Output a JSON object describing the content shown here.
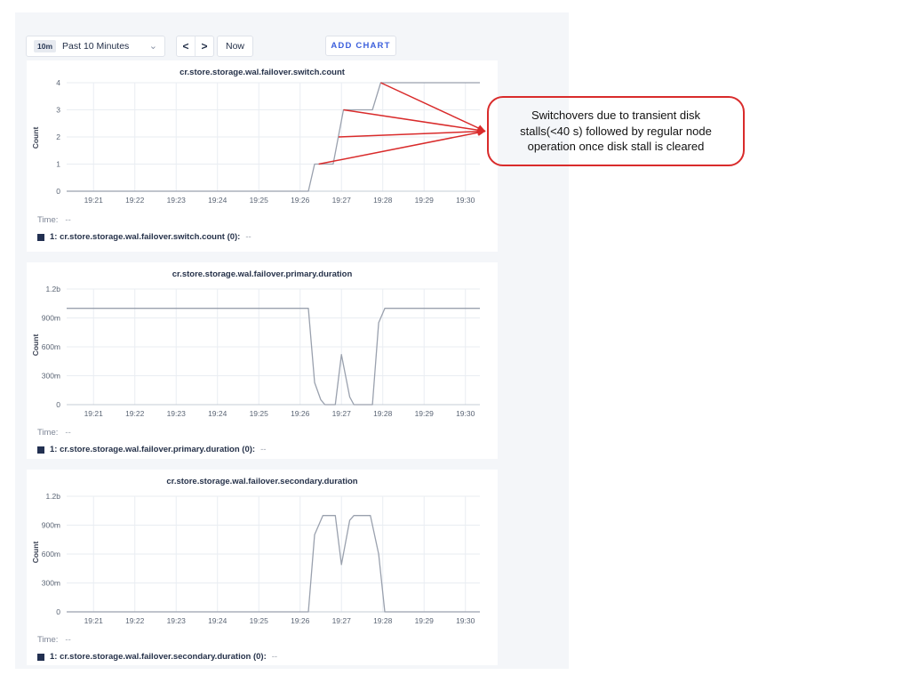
{
  "toolbar": {
    "time_range_badge": "10m",
    "time_range_label": "Past 10 Minutes",
    "chevron_down_icon": "⌄",
    "prev_icon": "<",
    "next_icon": ">",
    "now_label": "Now",
    "add_chart_label": "ADD CHART"
  },
  "annotation": {
    "lines": [
      "Switchovers due to transient disk",
      "stalls(<40 s) followed by regular node",
      "operation once disk stall is cleared"
    ],
    "color": "#d92b2b",
    "arrow_targets": [
      {
        "t": 27.95,
        "v": 4
      },
      {
        "t": 27.05,
        "v": 3
      },
      {
        "t": 26.93,
        "v": 2
      },
      {
        "t": 26.45,
        "v": 1
      }
    ]
  },
  "colors": {
    "line": "#9aa1ae",
    "grid": "#e9edf2",
    "baseline": "#c6ccd6",
    "tick_text": "#5b6575",
    "title_text": "#26324a",
    "swatch": "#223051",
    "accent_blue": "#3b5fdc",
    "content_bg": "#f4f6f9",
    "annotation_red": "#d92b2b"
  },
  "chart_data": [
    {
      "type": "line",
      "title": "cr.store.storage.wal.failover.switch.count",
      "ylabel": "Count",
      "x_unit": "time of day (hh:mm), minutes after 19:00",
      "xlim": [
        20.35,
        30.35
      ],
      "ylim": [
        0,
        4
      ],
      "xtick_values": [
        21,
        22,
        23,
        24,
        25,
        26,
        27,
        28,
        29,
        30
      ],
      "xtick_labels": [
        "19:21",
        "19:22",
        "19:23",
        "19:24",
        "19:25",
        "19:26",
        "19:27",
        "19:28",
        "19:29",
        "19:30"
      ],
      "ytick_values": [
        0,
        1,
        2,
        3,
        4
      ],
      "ytick_labels": [
        "0",
        "1",
        "2",
        "3",
        "4"
      ],
      "points": [
        [
          20.35,
          0
        ],
        [
          26.2,
          0
        ],
        [
          26.35,
          1
        ],
        [
          26.8,
          1
        ],
        [
          27.05,
          3
        ],
        [
          27.75,
          3
        ],
        [
          27.95,
          4
        ],
        [
          30.35,
          4
        ]
      ],
      "legend": {
        "time_label": "Time:",
        "time_value": "--",
        "series_label": "1: cr.store.storage.wal.failover.switch.count (0):",
        "series_value": "--"
      }
    },
    {
      "type": "line",
      "title": "cr.store.storage.wal.failover.primary.duration",
      "ylabel": "Count",
      "x_unit": "time of day (hh:mm), minutes after 19:00",
      "xlim": [
        20.35,
        30.35
      ],
      "ylim": [
        0,
        1.2
      ],
      "xtick_values": [
        21,
        22,
        23,
        24,
        25,
        26,
        27,
        28,
        29,
        30
      ],
      "xtick_labels": [
        "19:21",
        "19:22",
        "19:23",
        "19:24",
        "19:25",
        "19:26",
        "19:27",
        "19:28",
        "19:29",
        "19:30"
      ],
      "ytick_values": [
        0,
        0.3,
        0.6,
        0.9,
        1.2
      ],
      "ytick_labels": [
        "0",
        "300m",
        "600m",
        "900m",
        "1.2b"
      ],
      "points": [
        [
          20.35,
          1
        ],
        [
          26.2,
          1
        ],
        [
          26.35,
          0.23
        ],
        [
          26.5,
          0.05
        ],
        [
          26.6,
          0
        ],
        [
          26.85,
          0
        ],
        [
          27.0,
          0.52
        ],
        [
          27.2,
          0.08
        ],
        [
          27.3,
          0
        ],
        [
          27.75,
          0
        ],
        [
          27.9,
          0.85
        ],
        [
          28.05,
          1
        ],
        [
          30.35,
          1
        ]
      ],
      "legend": {
        "time_label": "Time:",
        "time_value": "--",
        "series_label": "1: cr.store.storage.wal.failover.primary.duration (0):",
        "series_value": "--"
      }
    },
    {
      "type": "line",
      "title": "cr.store.storage.wal.failover.secondary.duration",
      "ylabel": "Count",
      "x_unit": "time of day (hh:mm), minutes after 19:00",
      "xlim": [
        20.35,
        30.35
      ],
      "ylim": [
        0,
        1.2
      ],
      "xtick_values": [
        21,
        22,
        23,
        24,
        25,
        26,
        27,
        28,
        29,
        30
      ],
      "xtick_labels": [
        "19:21",
        "19:22",
        "19:23",
        "19:24",
        "19:25",
        "19:26",
        "19:27",
        "19:28",
        "19:29",
        "19:30"
      ],
      "ytick_values": [
        0,
        0.3,
        0.6,
        0.9,
        1.2
      ],
      "ytick_labels": [
        "0",
        "300m",
        "600m",
        "900m",
        "1.2b"
      ],
      "points": [
        [
          20.35,
          0
        ],
        [
          26.2,
          0
        ],
        [
          26.35,
          0.8
        ],
        [
          26.55,
          1
        ],
        [
          26.85,
          1
        ],
        [
          27.0,
          0.49
        ],
        [
          27.2,
          0.95
        ],
        [
          27.3,
          1
        ],
        [
          27.7,
          1
        ],
        [
          27.9,
          0.6
        ],
        [
          28.05,
          0
        ],
        [
          30.35,
          0
        ]
      ],
      "legend": {
        "time_label": "Time:",
        "time_value": "--",
        "series_label": "1: cr.store.storage.wal.failover.secondary.duration (0):",
        "series_value": "--"
      }
    }
  ]
}
